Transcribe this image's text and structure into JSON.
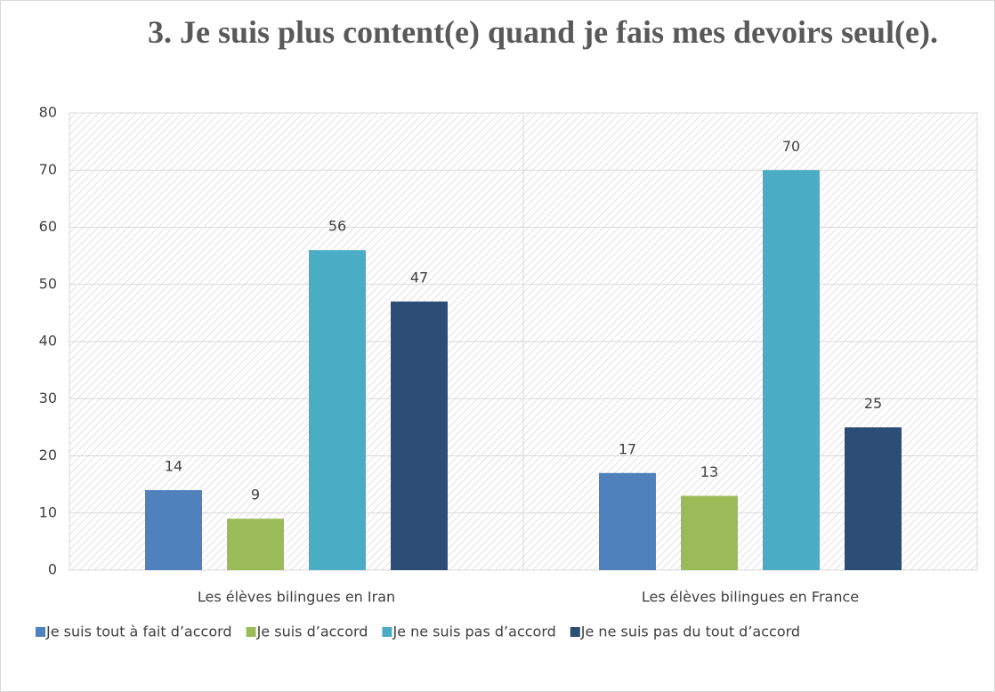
{
  "chart_data": {
    "type": "bar",
    "title": "3. Je suis plus content(e) quand je fais mes devoirs seul(e).",
    "categories": [
      "Les élèves bilingues en Iran",
      "Les élèves bilingues en France"
    ],
    "series": [
      {
        "name": "Je suis tout à fait d’accord",
        "color": "#4f81bd",
        "values": [
          14,
          17
        ]
      },
      {
        "name": "Je suis d’accord",
        "color": "#9bbb59",
        "values": [
          9,
          13
        ]
      },
      {
        "name": "Je ne suis pas d’accord",
        "color": "#4bacc6",
        "values": [
          56,
          70
        ]
      },
      {
        "name": "Je ne suis pas du tout d’accord",
        "color": "#2c4d75",
        "values": [
          47,
          25
        ]
      }
    ],
    "ylim": [
      0,
      80
    ],
    "yticks": [
      0,
      10,
      20,
      30,
      40,
      50,
      60,
      70,
      80
    ],
    "grid": true,
    "legend": "bottom"
  }
}
